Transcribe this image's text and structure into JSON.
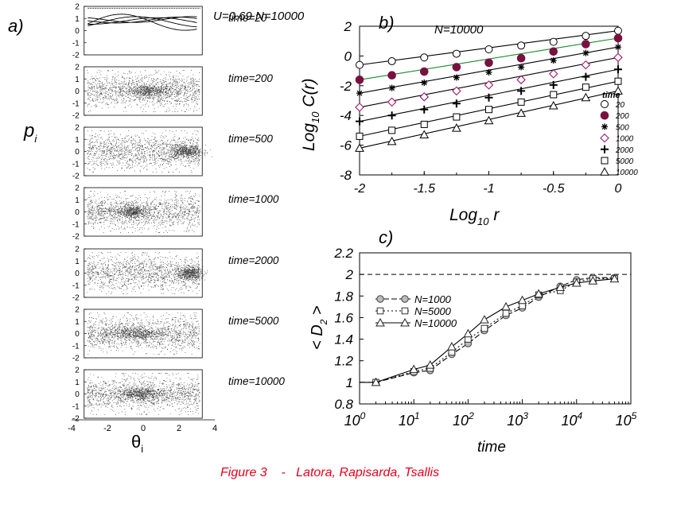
{
  "caption": "Figure 3    -   Latora, Rapisarda, Tsallis",
  "colors": {
    "caption": "#e8001c",
    "ink": "#000000",
    "maroon": "#7a1040",
    "green": "#1a8a2a",
    "diamond": "#9a1a6a"
  },
  "panel_a": {
    "label": "a)",
    "params": "U=0.69    N=10000",
    "ylabel_main": "p",
    "ylabel_sub": "i",
    "xlabel_main": "θ",
    "xlabel_sub": "i",
    "x_ticks": [
      "-4",
      "-2",
      "0",
      "2",
      "4"
    ],
    "y_ticks": [
      "2",
      "1",
      "0",
      "-1",
      "-2"
    ],
    "snapshots": [
      {
        "label": "time=20",
        "time": 20,
        "cluster_theta": 0.0,
        "spread": 0.0
      },
      {
        "label": "time=200",
        "time": 200,
        "cluster_theta": 0.3,
        "spread": 0.6
      },
      {
        "label": "time=500",
        "time": 500,
        "cluster_theta": 2.4,
        "spread": 0.45
      },
      {
        "label": "time=1000",
        "time": 1000,
        "cluster_theta": -0.6,
        "spread": 0.45
      },
      {
        "label": "time=2000",
        "time": 2000,
        "cluster_theta": 2.6,
        "spread": 0.35
      },
      {
        "label": "time=5000",
        "time": 5000,
        "cluster_theta": -0.5,
        "spread": 0.9
      },
      {
        "label": "time=10000",
        "time": 10000,
        "cluster_theta": -0.1,
        "spread": 0.6
      }
    ]
  },
  "chart_data": [
    {
      "id": "b",
      "type": "scatter",
      "label": "b)",
      "annotation": "N=10000",
      "title": "",
      "xlabel_main": "Log",
      "xlabel_sub": "10",
      "xlabel_rest": " r",
      "ylabel_main": "Log",
      "ylabel_sub": "10",
      "ylabel_rest": " C(r)",
      "xlim": [
        -2,
        0
      ],
      "ylim": [
        -8,
        2
      ],
      "x_ticks": [
        -2,
        -1.5,
        -1,
        -0.5,
        0
      ],
      "x_tick_labels": [
        "-2",
        "-1.5",
        "-1",
        "-0.5",
        "0"
      ],
      "y_ticks": [
        -8,
        -6,
        -4,
        -2,
        0,
        2
      ],
      "y_tick_labels": [
        "-8",
        "-6",
        "-4",
        "-2",
        "0",
        "2"
      ],
      "x": [
        -2,
        -1.75,
        -1.5,
        -1.25,
        -1,
        -0.75,
        -0.5,
        -0.25,
        0
      ],
      "legend_title": "time",
      "legend_position": "bottom-right",
      "series": [
        {
          "name": "20",
          "marker": "open-circle",
          "line": "black",
          "values": [
            -0.6,
            -0.35,
            -0.1,
            0.15,
            0.45,
            0.7,
            0.95,
            1.35,
            1.7
          ]
        },
        {
          "name": "200",
          "marker": "filled-circle",
          "line": "green",
          "values": [
            -1.6,
            -1.3,
            -1.05,
            -0.75,
            -0.45,
            -0.15,
            0.3,
            0.8,
            1.2
          ]
        },
        {
          "name": "500",
          "marker": "asterisk",
          "line": "black",
          "values": [
            -2.5,
            -2.15,
            -1.8,
            -1.45,
            -1.1,
            -0.75,
            -0.3,
            0.2,
            0.6
          ]
        },
        {
          "name": "1000",
          "marker": "open-diamond",
          "line": "black",
          "values": [
            -3.45,
            -3.1,
            -2.75,
            -2.35,
            -1.95,
            -1.6,
            -1.2,
            -0.6,
            -0.1
          ]
        },
        {
          "name": "2000",
          "marker": "plus",
          "line": "black",
          "values": [
            -4.4,
            -4.0,
            -3.6,
            -3.2,
            -2.8,
            -2.35,
            -1.95,
            -1.4,
            -0.9
          ]
        },
        {
          "name": "5000",
          "marker": "open-square",
          "line": "black",
          "values": [
            -5.4,
            -5.0,
            -4.6,
            -4.1,
            -3.6,
            -3.1,
            -2.6,
            -2.1,
            -1.7
          ]
        },
        {
          "name": "10000",
          "marker": "open-triangle",
          "line": "black",
          "values": [
            -6.2,
            -5.75,
            -5.3,
            -4.85,
            -4.35,
            -3.85,
            -3.35,
            -2.8,
            -2.35
          ]
        }
      ]
    },
    {
      "id": "c",
      "type": "line",
      "label": "c)",
      "title": "",
      "xlabel": "time",
      "ylabel_main": "< D",
      "ylabel_sub": "2",
      "ylabel_rest": " >",
      "xscale": "log",
      "xlim": [
        1,
        100000
      ],
      "ylim": [
        0.8,
        2.2
      ],
      "x_tick_exps": [
        "0",
        "1",
        "2",
        "3",
        "4",
        "5"
      ],
      "x_tick_base": "10",
      "y_ticks": [
        0.8,
        1,
        1.2,
        1.4,
        1.6,
        1.8,
        2,
        2.2
      ],
      "y_tick_labels": [
        "0.8",
        "1",
        "1.2",
        "1.4",
        "1.6",
        "1.8",
        "2",
        "2.2"
      ],
      "reference_line": 2,
      "legend_position": "top-left",
      "series": [
        {
          "name": "N=1000",
          "marker": "circle",
          "dash": "7,3",
          "x": [
            1,
            2,
            10,
            20,
            50,
            100,
            200,
            500,
            1000,
            2000,
            5000,
            10000,
            20000,
            50000
          ],
          "values": [
            1,
            1,
            1.09,
            1.11,
            1.26,
            1.36,
            1.48,
            1.62,
            1.69,
            1.79,
            1.89,
            1.95,
            1.97,
            1.97
          ]
        },
        {
          "name": "N=5000",
          "marker": "square",
          "dash": "2,3",
          "x": [
            1,
            2,
            10,
            20,
            50,
            100,
            200,
            500,
            1000,
            2000,
            5000,
            10000,
            20000,
            50000
          ],
          "values": [
            1,
            1,
            1.1,
            1.13,
            1.28,
            1.4,
            1.5,
            1.64,
            1.71,
            1.81,
            1.85,
            1.93,
            1.96,
            1.96
          ]
        },
        {
          "name": "N=10000",
          "marker": "triangle",
          "dash": "",
          "x": [
            1,
            2,
            10,
            20,
            50,
            100,
            200,
            500,
            1000,
            2000,
            5000,
            10000,
            20000,
            50000
          ],
          "values": [
            1,
            1,
            1.12,
            1.16,
            1.33,
            1.45,
            1.58,
            1.7,
            1.76,
            1.82,
            1.88,
            1.92,
            1.94,
            1.96
          ]
        }
      ]
    }
  ]
}
